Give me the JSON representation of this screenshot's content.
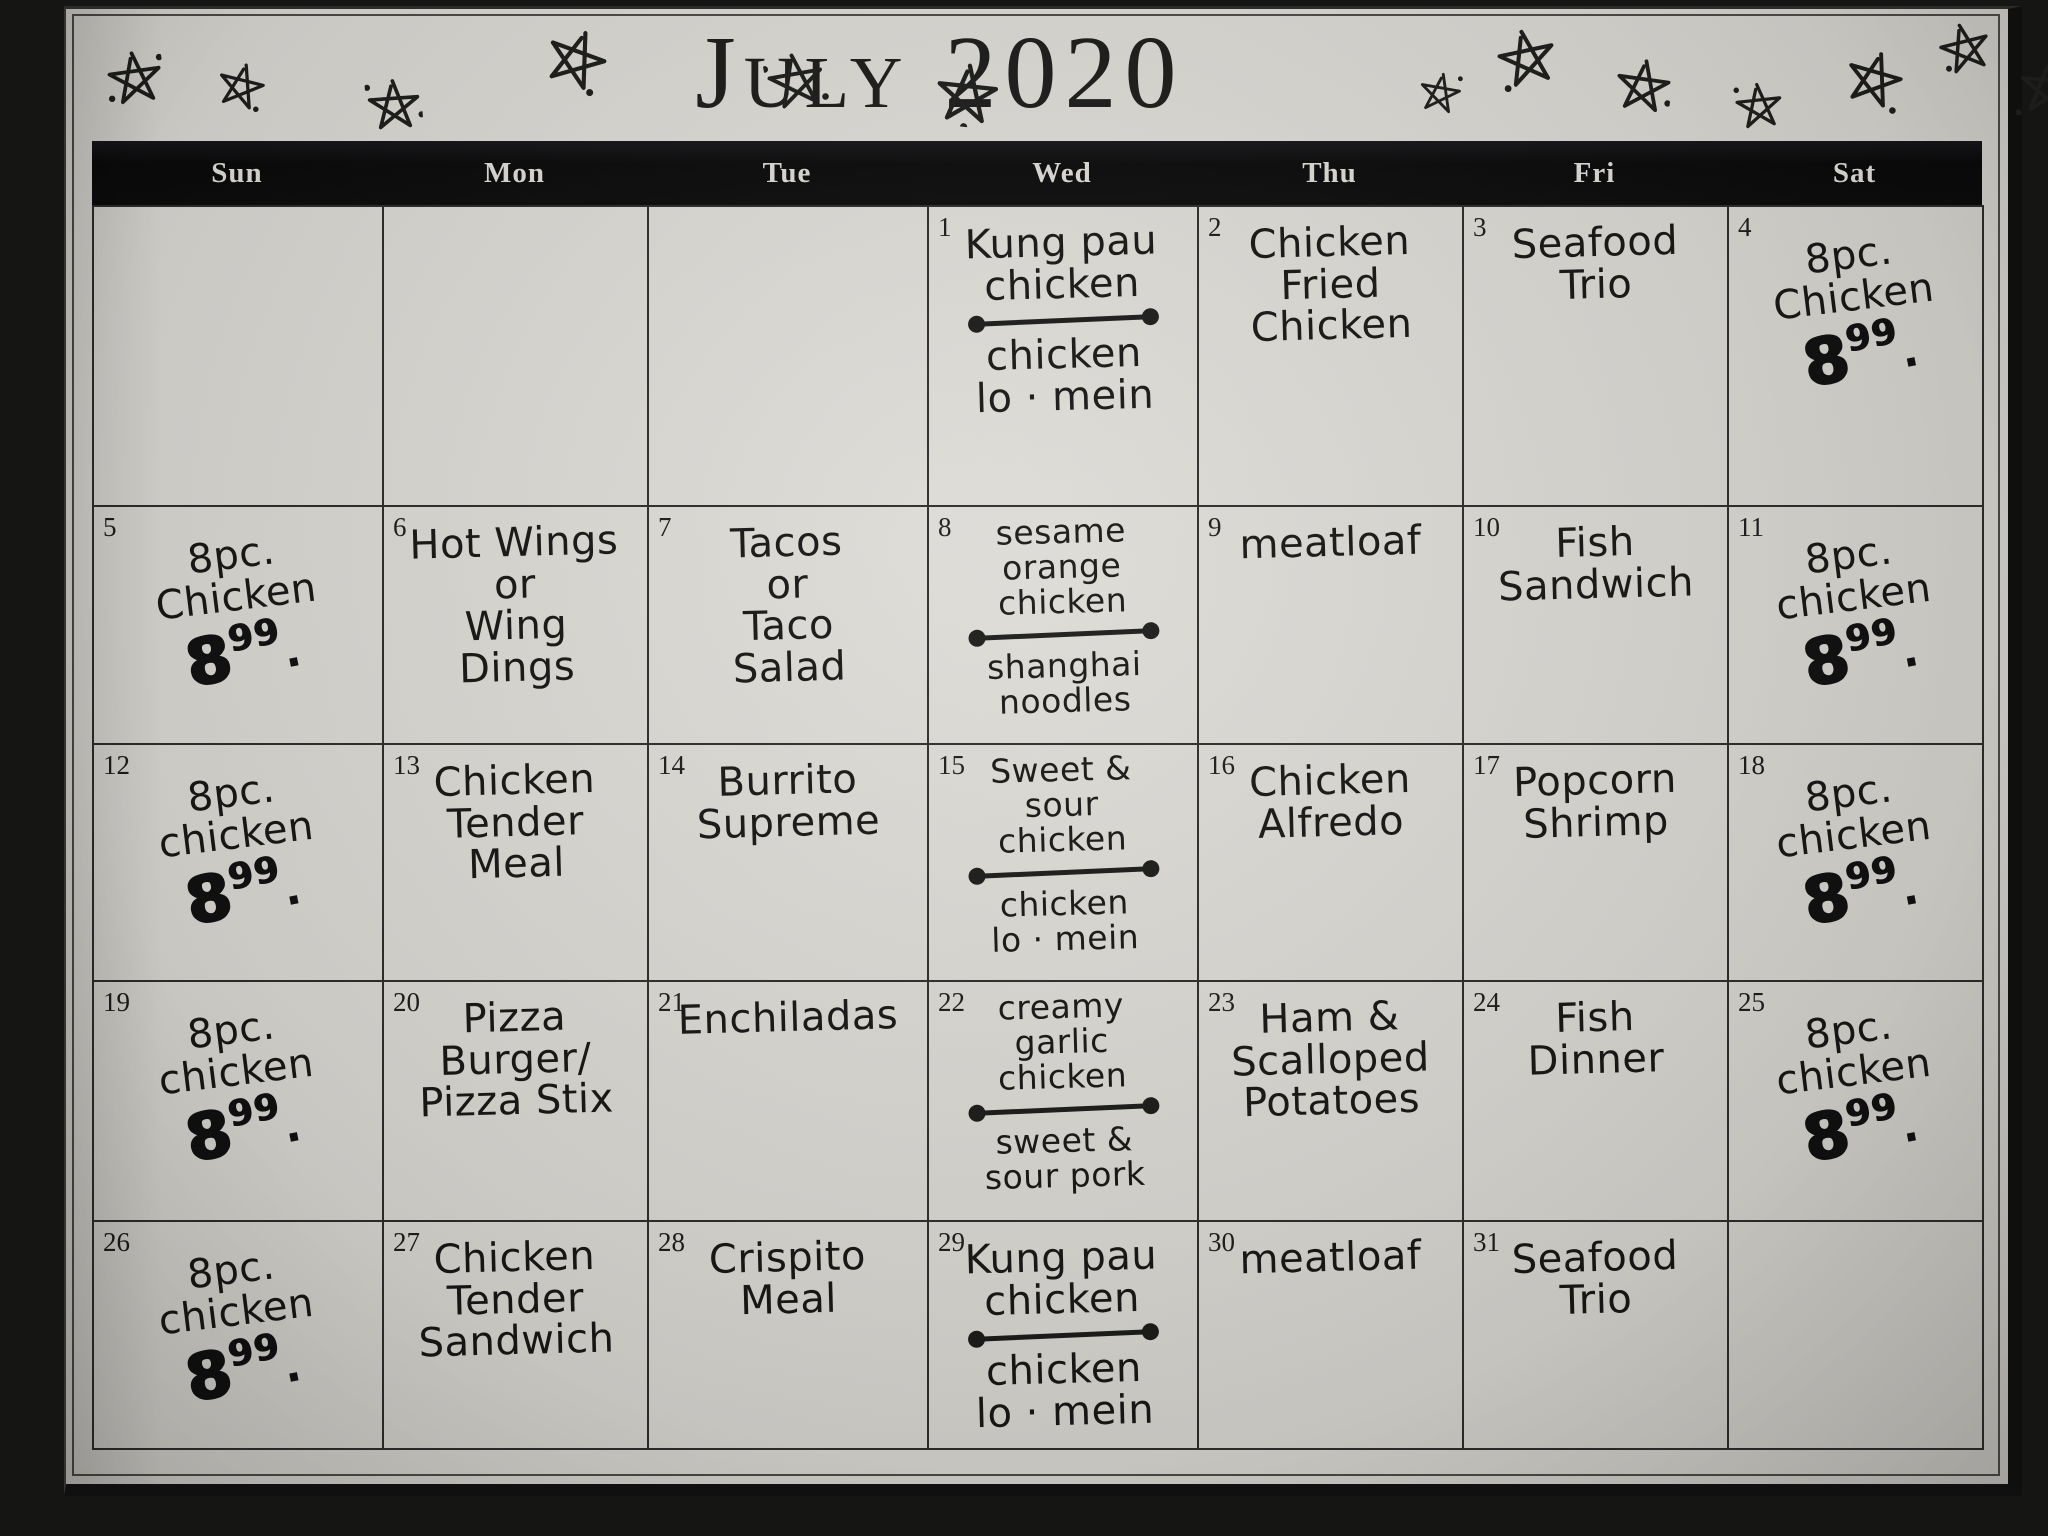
{
  "title": "July 2020",
  "weekdays": [
    "Sun",
    "Mon",
    "Tue",
    "Wed",
    "Thu",
    "Fri",
    "Sat"
  ],
  "icons": {
    "star_icon": "hand-drawn ink star doodle",
    "dot_icon": "ink dot"
  },
  "colors": {
    "paper": "#d5d3ce",
    "ink": "#1a1a18",
    "header_bg": "#0c0c0c",
    "header_text": "#d9d7d2",
    "photo_background": "#151513"
  },
  "weeks": [
    [
      {
        "day": ""
      },
      {
        "day": ""
      },
      {
        "day": ""
      },
      {
        "day": "1",
        "item1": [
          "Kung pau",
          "chicken"
        ],
        "divider": true,
        "item2": [
          "chicken",
          "lo · mein"
        ]
      },
      {
        "day": "2",
        "item1": [
          "Chicken",
          "Fried",
          "Chicken"
        ]
      },
      {
        "day": "3",
        "item1": [
          "Seafood",
          "Trio"
        ]
      },
      {
        "day": "4",
        "item1": [
          "8pc.",
          "Chicken"
        ],
        "price": "8.99"
      }
    ],
    [
      {
        "day": "5",
        "item1": [
          "8pc.",
          "Chicken"
        ],
        "price": "8.99"
      },
      {
        "day": "6",
        "item1": [
          "Hot Wings",
          "or",
          "Wing",
          "Dings"
        ]
      },
      {
        "day": "7",
        "item1": [
          "Tacos",
          "or",
          "Taco",
          "Salad"
        ]
      },
      {
        "day": "8",
        "item1": [
          "sesame",
          "orange",
          "chicken"
        ],
        "divider": true,
        "item2": [
          "shanghai",
          "noodles"
        ]
      },
      {
        "day": "9",
        "item1": [
          "meatloaf"
        ]
      },
      {
        "day": "10",
        "item1": [
          "Fish",
          "Sandwich"
        ]
      },
      {
        "day": "11",
        "item1": [
          "8pc.",
          "chicken"
        ],
        "price": "8.99"
      }
    ],
    [
      {
        "day": "12",
        "item1": [
          "8pc.",
          "chicken"
        ],
        "price": "8.99"
      },
      {
        "day": "13",
        "item1": [
          "Chicken",
          "Tender",
          "Meal"
        ]
      },
      {
        "day": "14",
        "item1": [
          "Burrito",
          "Supreme"
        ]
      },
      {
        "day": "15",
        "item1": [
          "Sweet &",
          "sour",
          "chicken"
        ],
        "divider": true,
        "item2": [
          "chicken",
          "lo · mein"
        ]
      },
      {
        "day": "16",
        "item1": [
          "Chicken",
          "Alfredo"
        ]
      },
      {
        "day": "17",
        "item1": [
          "Popcorn",
          "Shrimp"
        ]
      },
      {
        "day": "18",
        "item1": [
          "8pc.",
          "chicken"
        ],
        "price": "8.99"
      }
    ],
    [
      {
        "day": "19",
        "item1": [
          "8pc.",
          "chicken"
        ],
        "price": "8.99"
      },
      {
        "day": "20",
        "item1": [
          "Pizza",
          "Burger/",
          "Pizza Stix"
        ]
      },
      {
        "day": "21",
        "item1": [
          "Enchiladas"
        ]
      },
      {
        "day": "22",
        "item1": [
          "creamy",
          "garlic",
          "chicken"
        ],
        "divider": true,
        "item2": [
          "sweet &",
          "sour pork"
        ]
      },
      {
        "day": "23",
        "item1": [
          "Ham &",
          "Scalloped",
          "Potatoes"
        ]
      },
      {
        "day": "24",
        "item1": [
          "Fish",
          "Dinner"
        ]
      },
      {
        "day": "25",
        "item1": [
          "8pc.",
          "chicken"
        ],
        "price": "8.99"
      }
    ],
    [
      {
        "day": "26",
        "item1": [
          "8pc.",
          "chicken"
        ],
        "price": "8.99"
      },
      {
        "day": "27",
        "item1": [
          "Chicken",
          "Tender",
          "Sandwich"
        ]
      },
      {
        "day": "28",
        "item1": [
          "Crispito",
          "Meal"
        ]
      },
      {
        "day": "29",
        "item1": [
          "Kung pau",
          "chicken"
        ],
        "divider": true,
        "item2": [
          "chicken",
          "lo · mein"
        ]
      },
      {
        "day": "30",
        "item1": [
          "meatloaf"
        ]
      },
      {
        "day": "31",
        "item1": [
          "Seafood",
          "Trio"
        ]
      },
      {
        "day": ""
      }
    ]
  ]
}
